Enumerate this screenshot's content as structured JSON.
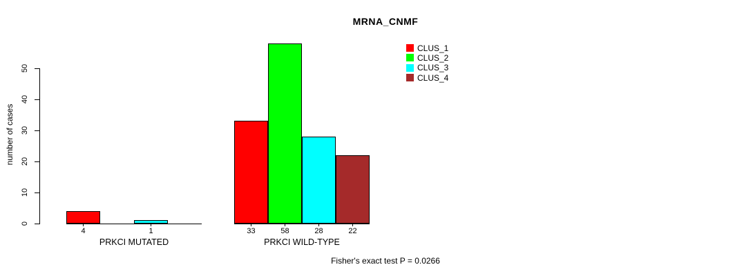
{
  "chart_data": {
    "type": "bar",
    "title": "MRNA_CNMF",
    "ylabel": "number of cases",
    "xlabel": "",
    "yticks": [
      0,
      10,
      20,
      30,
      40,
      50
    ],
    "ylim": [
      0,
      58
    ],
    "grid": false,
    "legend_position": "top-right",
    "series_names": [
      "CLUS_1",
      "CLUS_2",
      "CLUS_3",
      "CLUS_4"
    ],
    "colors": [
      "#ff0000",
      "#00ff00",
      "#00ffff",
      "#a52a2a"
    ],
    "bar_border_color": "#000000",
    "categories": [
      "PRKCI MUTATED",
      "PRKCI WILD-TYPE"
    ],
    "groups": [
      {
        "label": "PRKCI MUTATED",
        "values": [
          4,
          0,
          1,
          0
        ],
        "shown_value_labels": [
          "4",
          "1"
        ]
      },
      {
        "label": "PRKCI WILD-TYPE",
        "values": [
          33,
          58,
          28,
          22
        ],
        "shown_value_labels": [
          "33",
          "58",
          "28",
          "22"
        ]
      }
    ],
    "footnote": "Fisher's exact test P = 0.0266"
  }
}
